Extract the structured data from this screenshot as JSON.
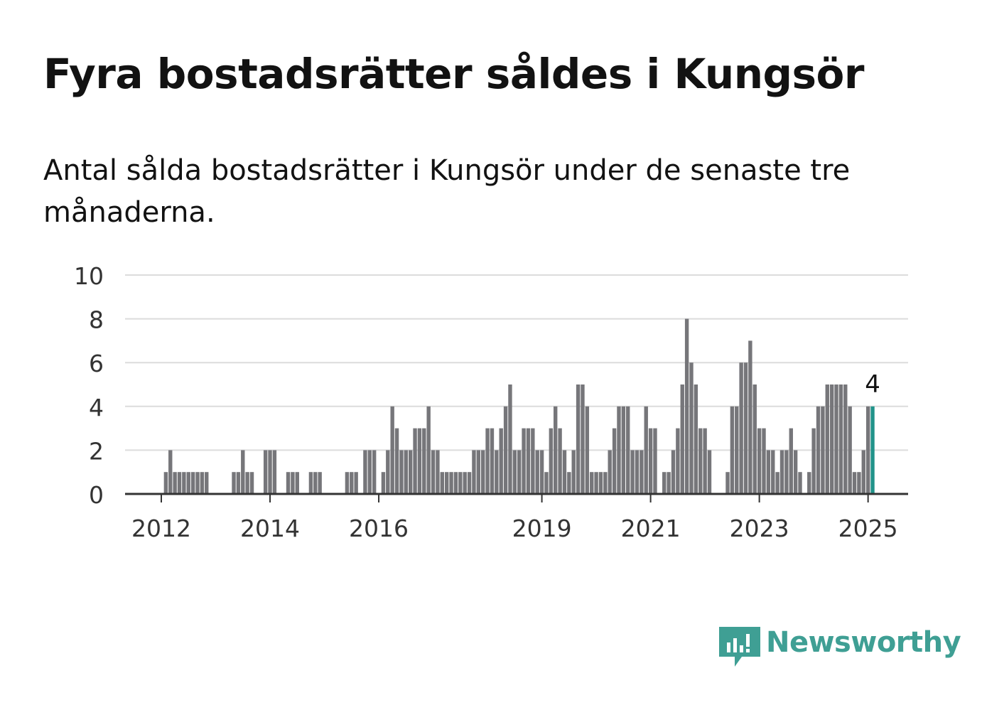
{
  "header": {
    "title": "Fyra bostadsrätter såldes i Kungsör",
    "subtitle": "Antal sålda bostadsrätter i Kungsör under de senaste tre månaderna."
  },
  "brand": {
    "name": "Newsworthy",
    "color": "#3f9f94",
    "icon": "newsworthy-logo-icon"
  },
  "chart_data": {
    "type": "bar",
    "ylim": [
      0,
      10
    ],
    "y_ticks": [
      0,
      2,
      4,
      6,
      8,
      10
    ],
    "grid": true,
    "x_tick_labels": [
      {
        "label": "2012",
        "index": 0
      },
      {
        "label": "2014",
        "index": 24
      },
      {
        "label": "2016",
        "index": 48
      },
      {
        "label": "2019",
        "index": 84
      },
      {
        "label": "2021",
        "index": 108
      },
      {
        "label": "2023",
        "index": 132
      },
      {
        "label": "2025",
        "index": 156
      }
    ],
    "values": [
      0,
      1,
      2,
      1,
      1,
      1,
      1,
      1,
      1,
      1,
      1,
      0,
      0,
      0,
      0,
      0,
      1,
      1,
      2,
      1,
      1,
      0,
      0,
      2,
      2,
      2,
      0,
      0,
      1,
      1,
      1,
      0,
      0,
      1,
      1,
      1,
      0,
      0,
      0,
      0,
      0,
      1,
      1,
      1,
      0,
      2,
      2,
      2,
      0,
      1,
      2,
      4,
      3,
      2,
      2,
      2,
      3,
      3,
      3,
      4,
      2,
      2,
      1,
      1,
      1,
      1,
      1,
      1,
      1,
      2,
      2,
      2,
      3,
      3,
      2,
      3,
      4,
      5,
      2,
      2,
      3,
      3,
      3,
      2,
      2,
      1,
      3,
      4,
      3,
      2,
      1,
      2,
      5,
      5,
      4,
      1,
      1,
      1,
      1,
      2,
      3,
      4,
      4,
      4,
      2,
      2,
      2,
      4,
      3,
      3,
      0,
      1,
      1,
      2,
      3,
      5,
      8,
      6,
      5,
      3,
      3,
      2,
      0,
      0,
      0,
      1,
      4,
      4,
      6,
      6,
      7,
      5,
      3,
      3,
      2,
      2,
      1,
      2,
      2,
      3,
      2,
      1,
      0,
      1,
      3,
      4,
      4,
      5,
      5,
      5,
      5,
      5,
      4,
      1,
      1,
      2,
      4,
      4
    ],
    "bar_color": "#76767a",
    "highlight_color": "#21938a",
    "highlight_index": 157,
    "highlight_label": "4"
  }
}
